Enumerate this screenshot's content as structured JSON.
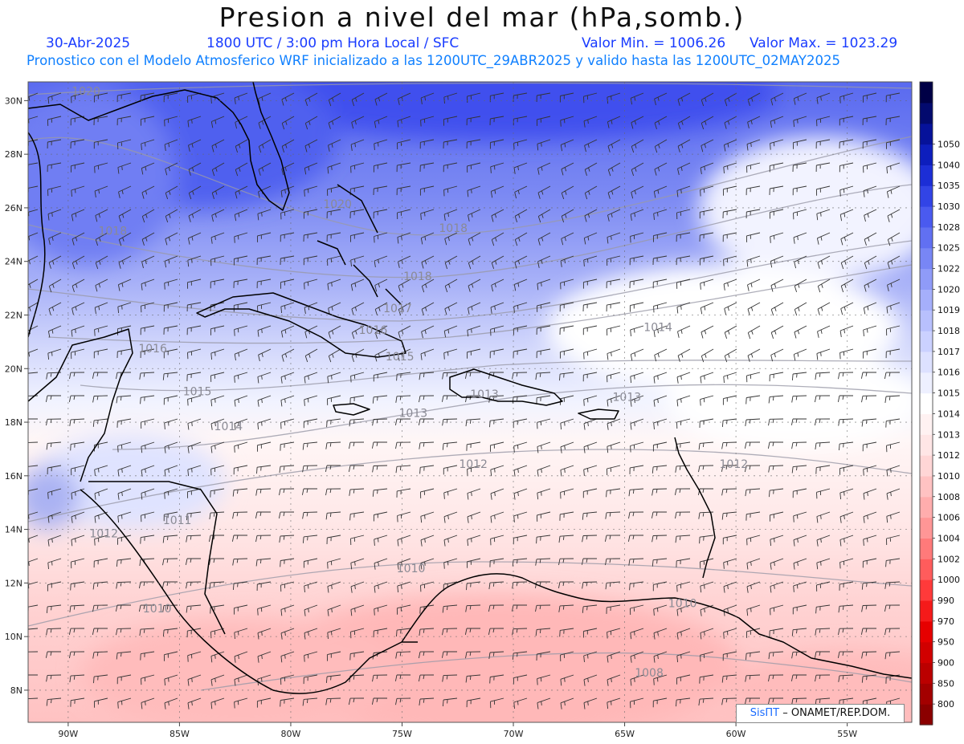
{
  "title": "Presion a nivel del mar (hPa,somb.)",
  "subtitle": {
    "date": "30-Abr-2025",
    "time": "1800 UTC / 3:00 pm Hora Local / SFC",
    "valor_min": "Valor Min. = 1006.26",
    "valor_max": "Valor Max. = 1023.29",
    "forecast": "Pronostico con el Modelo Atmosferico WRF inicializado a las 1200UTC_29ABR2025 y valido hasta las  1200UTC_02MAY2025"
  },
  "map": {
    "lon_range": [
      -91.8,
      -52.1
    ],
    "lat_range": [
      6.8,
      30.7
    ],
    "lon_ticks": [
      {
        "v": -90,
        "label": "90W"
      },
      {
        "v": -85,
        "label": "85W"
      },
      {
        "v": -80,
        "label": "80W"
      },
      {
        "v": -75,
        "label": "75W"
      },
      {
        "v": -70,
        "label": "70W"
      },
      {
        "v": -65,
        "label": "65W"
      },
      {
        "v": -60,
        "label": "60W"
      },
      {
        "v": -55,
        "label": "55W"
      }
    ],
    "lat_ticks": [
      {
        "v": 8,
        "label": "8N"
      },
      {
        "v": 10,
        "label": "10N"
      },
      {
        "v": 12,
        "label": "12N"
      },
      {
        "v": 14,
        "label": "14N"
      },
      {
        "v": 16,
        "label": "16N"
      },
      {
        "v": 18,
        "label": "18N"
      },
      {
        "v": 20,
        "label": "20N"
      },
      {
        "v": 22,
        "label": "22N"
      },
      {
        "v": 24,
        "label": "24N"
      },
      {
        "v": 26,
        "label": "26N"
      },
      {
        "v": 28,
        "label": "28N"
      },
      {
        "v": 30,
        "label": "30N"
      }
    ],
    "grid": true,
    "isobar_labels": [
      {
        "text": "1020",
        "lon": -89.2,
        "lat": 30.2
      },
      {
        "text": "1020",
        "lon": -77.9,
        "lat": 26.0
      },
      {
        "text": "1018",
        "lon": -88.0,
        "lat": 25.0
      },
      {
        "text": "1018",
        "lon": -72.7,
        "lat": 25.1
      },
      {
        "text": "1018",
        "lon": -74.3,
        "lat": 23.3
      },
      {
        "text": "1017",
        "lon": -75.2,
        "lat": 22.1
      },
      {
        "text": "1016",
        "lon": -76.3,
        "lat": 21.3
      },
      {
        "text": "1016",
        "lon": -86.2,
        "lat": 20.6
      },
      {
        "text": "1015",
        "lon": -75.1,
        "lat": 20.3
      },
      {
        "text": "1015",
        "lon": -84.2,
        "lat": 19.0
      },
      {
        "text": "1014",
        "lon": -63.5,
        "lat": 21.4
      },
      {
        "text": "1014",
        "lon": -82.8,
        "lat": 17.7
      },
      {
        "text": "1013",
        "lon": -64.9,
        "lat": 18.8
      },
      {
        "text": "1013",
        "lon": -71.3,
        "lat": 18.9
      },
      {
        "text": "1013",
        "lon": -74.5,
        "lat": 18.2
      },
      {
        "text": "1012",
        "lon": -71.8,
        "lat": 16.3
      },
      {
        "text": "1012",
        "lon": -60.1,
        "lat": 16.3
      },
      {
        "text": "1012",
        "lon": -88.4,
        "lat": 13.7
      },
      {
        "text": "1011",
        "lon": -85.1,
        "lat": 14.2
      },
      {
        "text": "1010",
        "lon": -74.6,
        "lat": 12.4
      },
      {
        "text": "1010",
        "lon": -62.4,
        "lat": 11.1
      },
      {
        "text": "1010",
        "lon": -86.0,
        "lat": 10.9
      },
      {
        "text": "1008",
        "lon": -63.9,
        "lat": 8.5
      }
    ]
  },
  "colorbar": {
    "colors": [
      "#8b0000",
      "#a30000",
      "#bb0000",
      "#d10000",
      "#e60000",
      "#f51a1a",
      "#ff3a3a",
      "#ff5c5c",
      "#ff7a7a",
      "#ff9696",
      "#ffadad",
      "#ffc2c2",
      "#ffd6d6",
      "#ffe6e6",
      "#fff2f2",
      "#ffffff",
      "#eef0ff",
      "#dde1ff",
      "#cbd1ff",
      "#b8c0fd",
      "#a5affb",
      "#8f9bf8",
      "#7886f5",
      "#6170f2",
      "#4a5aef",
      "#3244e6",
      "#1c2ed6",
      "#0d1ebd",
      "#06129a",
      "#030a6e",
      "#000046"
    ],
    "labels": [
      "800",
      "850",
      "900",
      "950",
      "970",
      "990",
      "1000",
      "1002",
      "1004",
      "1006",
      "1008",
      "1010",
      "1012",
      "1013",
      "1014",
      "1015",
      "1016",
      "1017",
      "1018",
      "1019",
      "1020",
      "1022",
      "1025",
      "1028",
      "1030",
      "1035",
      "1040",
      "1050"
    ]
  },
  "credit": {
    "brand": "SisПT",
    "org": " – ONAMET/REP.DOM."
  }
}
